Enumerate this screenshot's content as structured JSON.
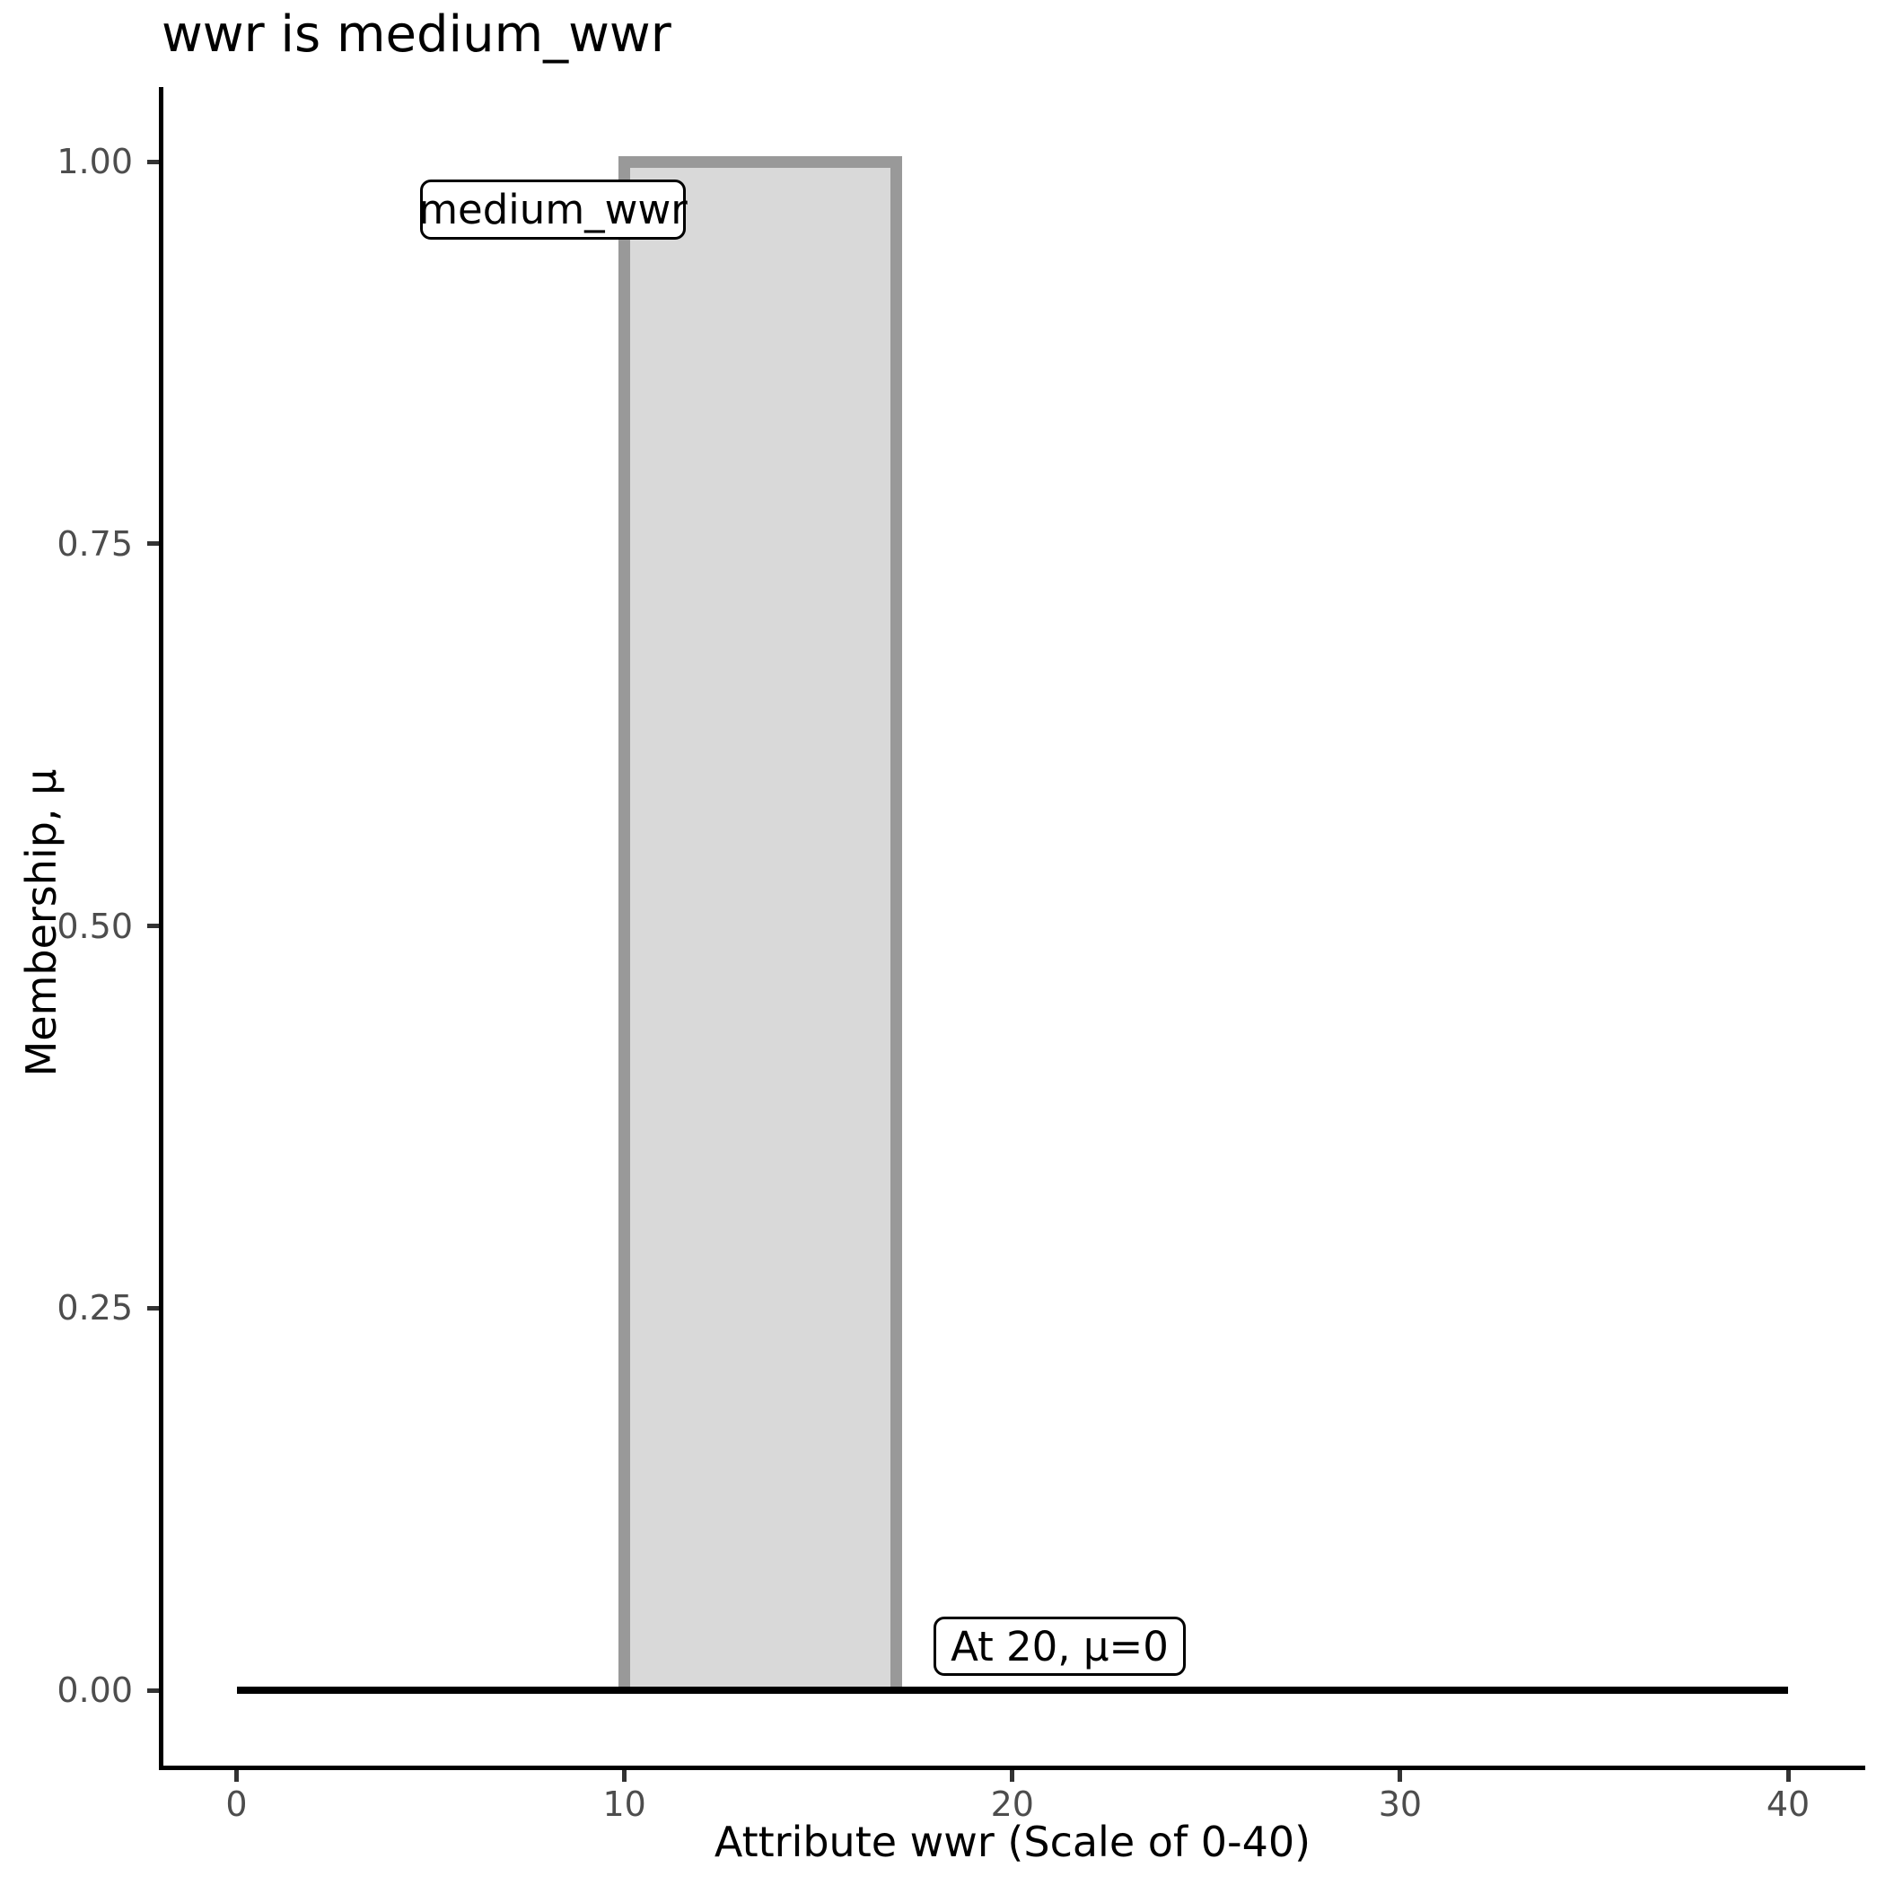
{
  "chart": {
    "title": "wwr is medium_wwr",
    "x_axis": {
      "label": "Attribute wwr (Scale of 0-40)",
      "ticks": [
        "0",
        "10",
        "20",
        "30",
        "40"
      ],
      "tick_values": [
        0,
        10,
        20,
        30,
        40
      ]
    },
    "y_axis": {
      "label": "Membership, μ",
      "ticks": [
        "0.00",
        "0.25",
        "0.50",
        "0.75",
        "1.00"
      ],
      "tick_values": [
        0,
        0.25,
        0.5,
        0.75,
        1
      ]
    },
    "annotations": {
      "set_label": "medium_wwr",
      "point_label": "At 20, μ=0"
    },
    "colors": {
      "rect_fill": "#d9d9d9",
      "rect_stroke": "#999999",
      "baseline": "#000000",
      "axis_line": "#000000",
      "tick_mark": "#333333",
      "tick_label": "#4d4d4d",
      "title_text": "#000000",
      "label_box_bg": "#ffffff",
      "label_box_border": "#000000"
    }
  },
  "chart_data": {
    "type": "area",
    "title": "wwr is medium_wwr",
    "xlabel": "Attribute wwr (Scale of 0-40)",
    "ylabel": "Membership, μ",
    "xlim": [
      0,
      40
    ],
    "ylim": [
      0,
      1
    ],
    "grid": false,
    "legend": false,
    "series": [
      {
        "name": "medium_wwr",
        "x": [
          0,
          10,
          10,
          17,
          17,
          40
        ],
        "y": [
          0,
          0,
          1,
          1,
          0,
          0
        ],
        "membership": {
          "x_start": 10,
          "x_end": 17,
          "mu_inside": 1,
          "mu_outside": 0
        }
      }
    ],
    "annotations": [
      {
        "text": "medium_wwr",
        "near_x": 10,
        "near_y": 0.95,
        "kind": "label-box"
      },
      {
        "text": "At 20, μ=0",
        "near_x": 20,
        "near_y": 0.03,
        "kind": "label-box"
      }
    ]
  }
}
